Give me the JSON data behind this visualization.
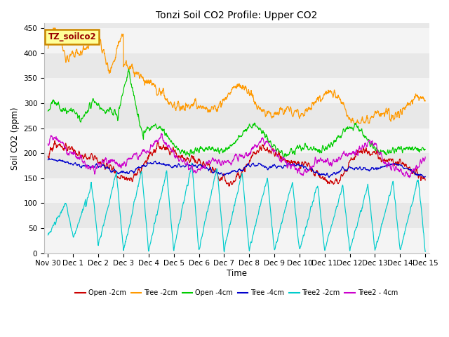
{
  "title": "Tonzi Soil CO2 Profile: Upper CO2",
  "ylabel": "Soil CO2 (ppm)",
  "xlabel": "Time",
  "annotation_label": "TZ_soilco2",
  "ylim": [
    0,
    460
  ],
  "plot_bg_color": "#e8e8e8",
  "series": [
    {
      "name": "Open -2cm",
      "color": "#cc0000"
    },
    {
      "name": "Tree -2cm",
      "color": "#ff9900"
    },
    {
      "name": "Open -4cm",
      "color": "#00cc00"
    },
    {
      "name": "Tree -4cm",
      "color": "#0000cc"
    },
    {
      "name": "Tree2 -2cm",
      "color": "#00cccc"
    },
    {
      "name": "Tree2 - 4cm",
      "color": "#cc00cc"
    }
  ],
  "x_tick_labels": [
    "Nov 30",
    "Dec 1",
    "Dec 2",
    "Dec 3",
    "Dec 4",
    "Dec 5",
    "Dec 6",
    "Dec 7",
    "Dec 8",
    "Dec 9",
    "Dec 10",
    "Dec 11",
    "Dec 12",
    "Dec 13",
    "Dec 14",
    "Dec 15"
  ],
  "band_y": [
    0,
    50,
    100,
    150,
    200,
    250,
    300,
    350,
    400,
    450
  ],
  "n_points": 1440
}
